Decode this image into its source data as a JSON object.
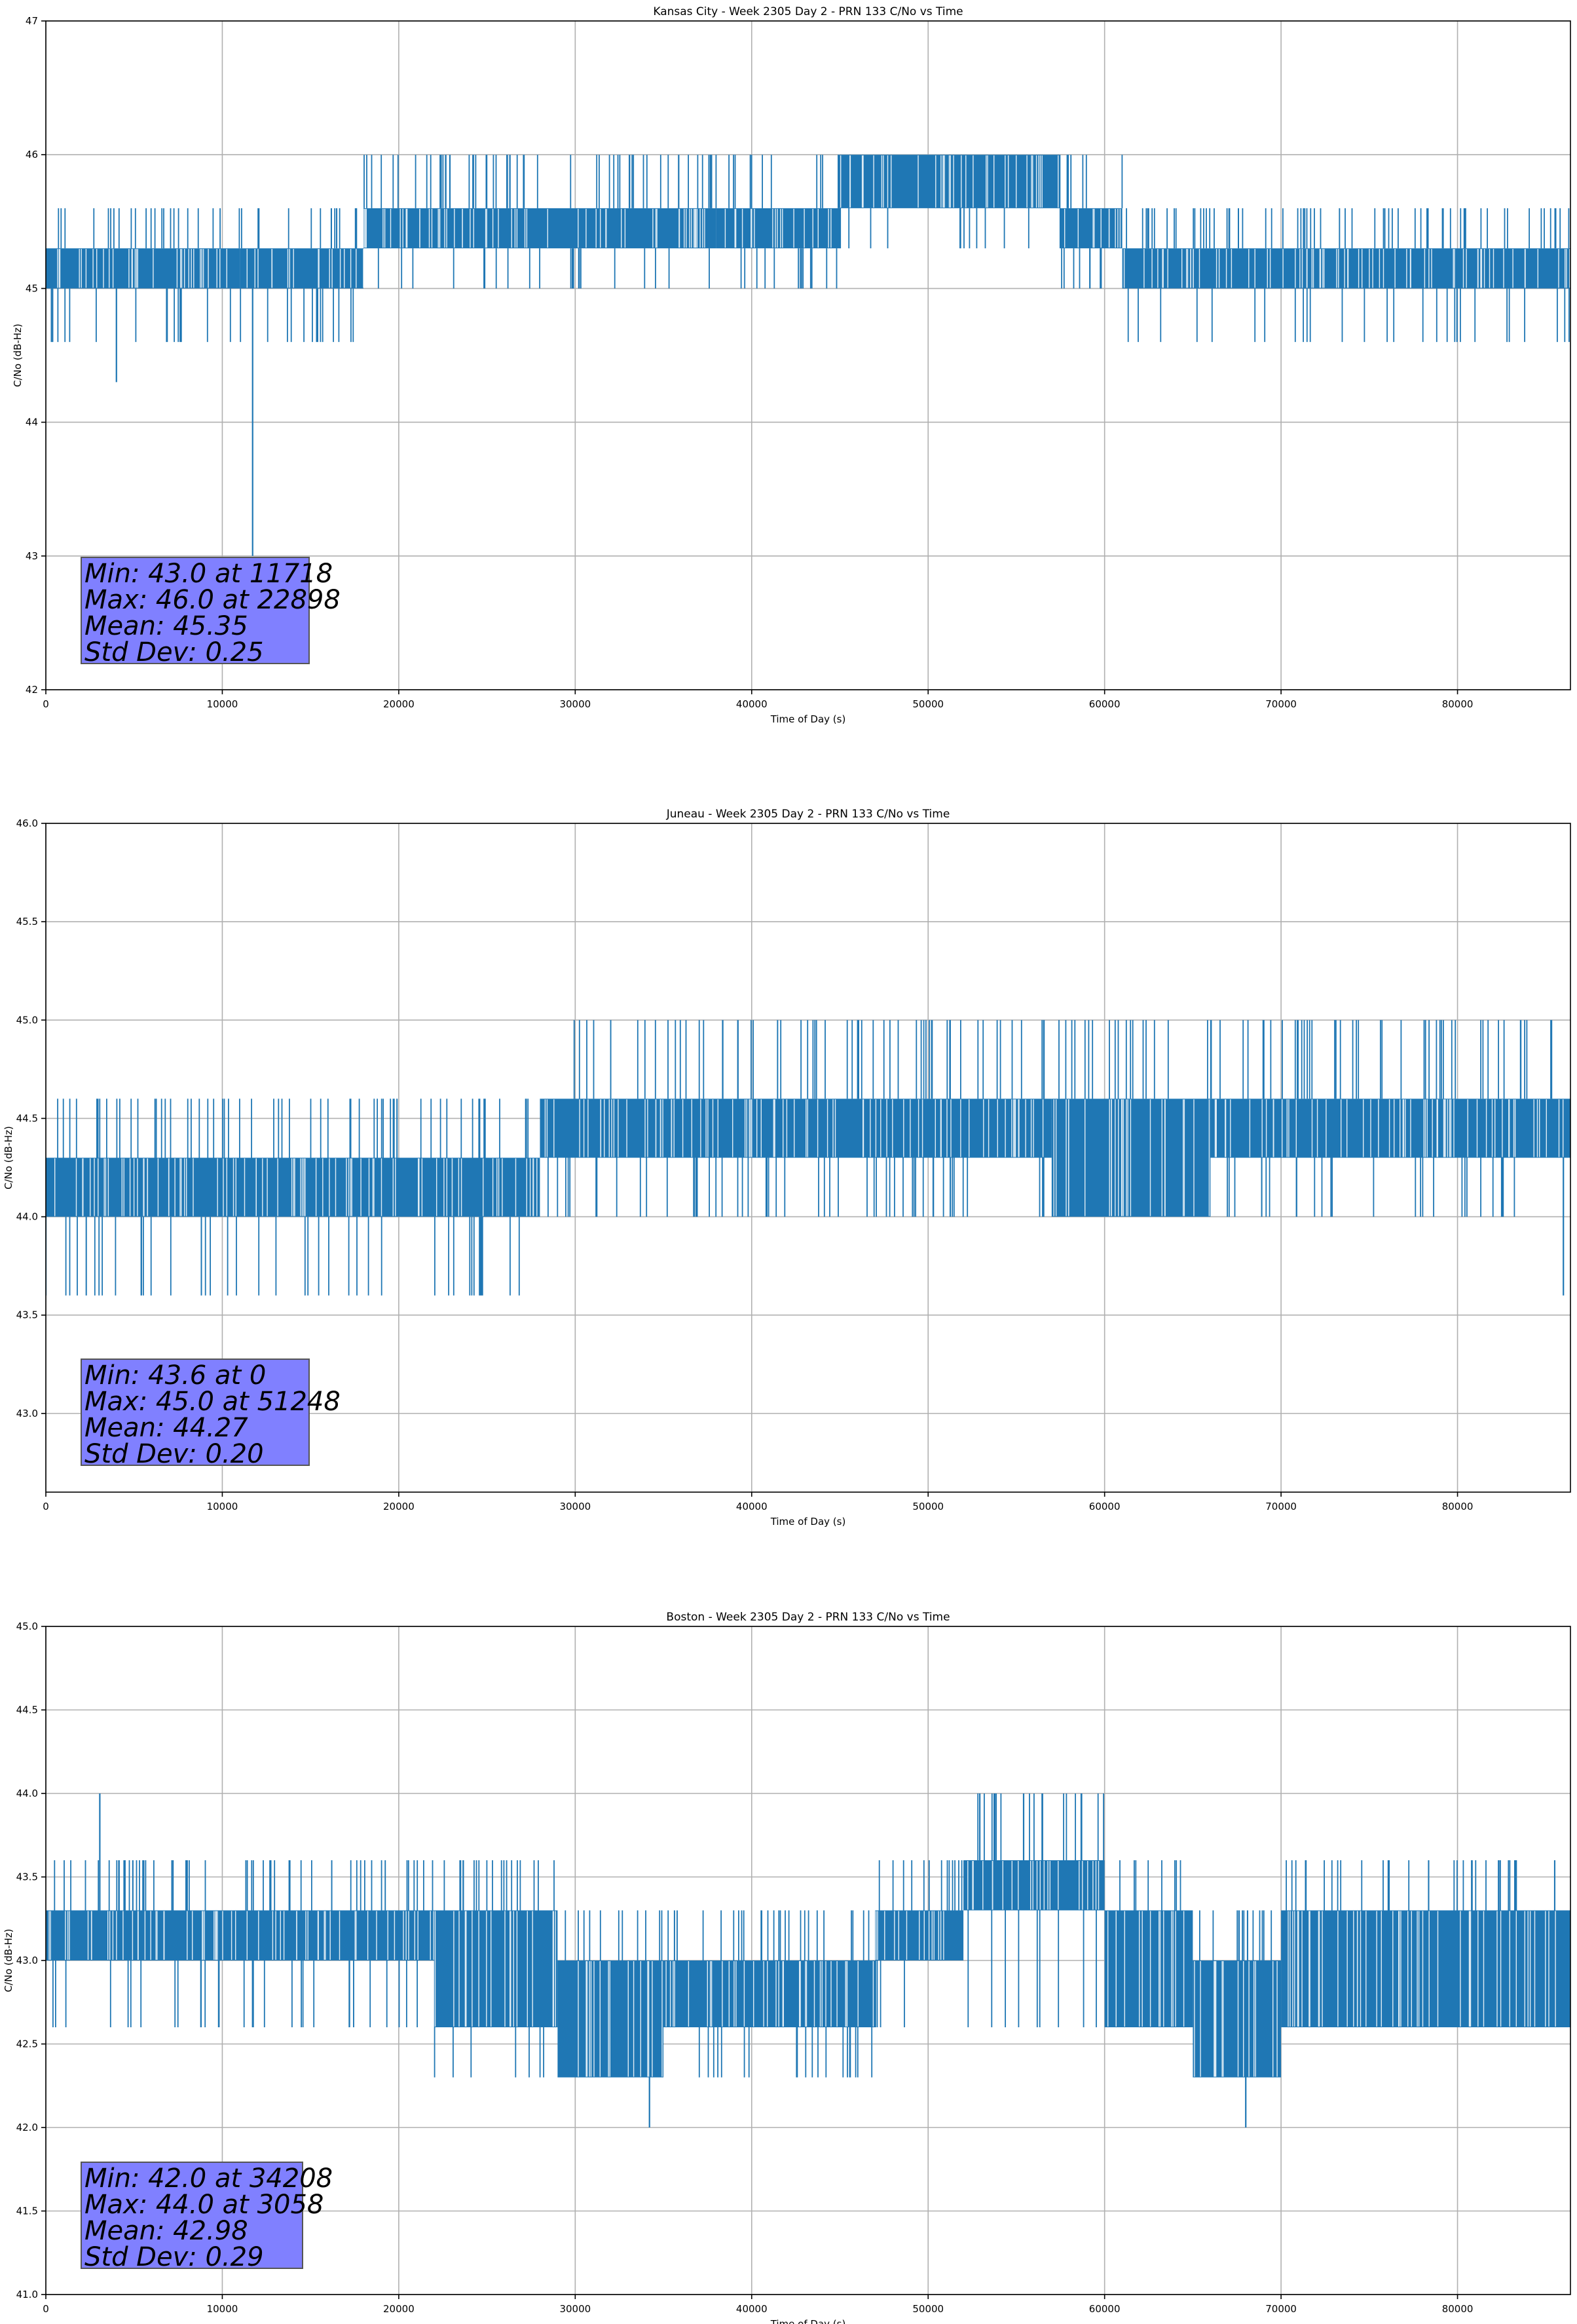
{
  "figure": {
    "background": "#ffffff",
    "series_color": "#1f77b4",
    "grid_color": "#b0b0b0",
    "stats_box_color": "#8080ff"
  },
  "chart_data": [
    {
      "type": "line",
      "title": "Kansas City - Week 2305 Day 2 - PRN 133 C/No vs Time",
      "xlabel": "Time of Day (s)",
      "ylabel": "C/No (dB-Hz)",
      "xlim": [
        0,
        86400
      ],
      "ylim": [
        42,
        47
      ],
      "xticks": [
        0,
        10000,
        20000,
        30000,
        40000,
        50000,
        60000,
        70000,
        80000
      ],
      "xtick_labels": [
        "0",
        "10000",
        "20000",
        "30000",
        "40000",
        "50000",
        "60000",
        "70000",
        "80000"
      ],
      "yticks": [
        42,
        43,
        44,
        45,
        46,
        47
      ],
      "ytick_labels": [
        "42",
        "43",
        "44",
        "45",
        "46",
        "47"
      ],
      "grid": true,
      "levels": [
        44.3,
        44.6,
        45.0,
        45.3,
        45.6,
        46.0
      ],
      "segments": [
        {
          "x": [
            0,
            11000
          ],
          "base": 45.0,
          "top": 45.3,
          "spike_up": 45.6,
          "spike_down": 44.6
        },
        {
          "x": [
            11000,
            18000
          ],
          "base": 45.0,
          "top": 45.3,
          "spike_up": 45.6,
          "spike_down": 44.6
        },
        {
          "x": [
            18000,
            38000
          ],
          "base": 45.3,
          "top": 45.6,
          "spike_up": 46.0,
          "spike_down": 45.0
        },
        {
          "x": [
            38000,
            45000
          ],
          "base": 45.3,
          "top": 45.6,
          "spike_up": 46.0,
          "spike_down": 45.0
        },
        {
          "x": [
            45000,
            57500
          ],
          "base": 45.6,
          "top": 46.0,
          "spike_up": 46.0,
          "spike_down": 45.3
        },
        {
          "x": [
            57500,
            61000
          ],
          "base": 45.3,
          "top": 45.6,
          "spike_up": 46.0,
          "spike_down": 45.0
        },
        {
          "x": [
            61000,
            86400
          ],
          "base": 45.0,
          "top": 45.3,
          "spike_up": 45.6,
          "spike_down": 44.6
        }
      ],
      "notable_points": [
        {
          "x": 11718,
          "y": 43.0
        },
        {
          "x": 4000,
          "y": 44.3
        },
        {
          "x": 22898,
          "y": 46.0
        },
        {
          "x": 26300,
          "y": 46.0
        }
      ],
      "stats": {
        "min": "Min: 43.0 at 11718",
        "max": "Max: 46.0 at 22898",
        "mean": "Mean: 45.35",
        "std": "Std Dev: 0.25"
      }
    },
    {
      "type": "line",
      "title": "Juneau - Week 2305 Day 2 - PRN 133 C/No vs Time",
      "xlabel": "Time of Day (s)",
      "ylabel": "C/No (dB-Hz)",
      "xlim": [
        0,
        86400
      ],
      "ylim": [
        42.6,
        46.0
      ],
      "xticks": [
        0,
        10000,
        20000,
        30000,
        40000,
        50000,
        60000,
        70000,
        80000
      ],
      "xtick_labels": [
        "0",
        "10000",
        "20000",
        "30000",
        "40000",
        "50000",
        "60000",
        "70000",
        "80000"
      ],
      "yticks": [
        43.0,
        43.5,
        44.0,
        44.5,
        45.0,
        45.5,
        46.0
      ],
      "ytick_labels": [
        "43.0",
        "43.5",
        "44.0",
        "44.5",
        "45.0",
        "45.5",
        "46.0"
      ],
      "grid": true,
      "levels": [
        43.6,
        44.0,
        44.3,
        44.6,
        45.0
      ],
      "segments": [
        {
          "x": [
            0,
            17000
          ],
          "base": 44.0,
          "top": 44.3,
          "spike_up": 44.6,
          "spike_down": 43.6
        },
        {
          "x": [
            17000,
            23000
          ],
          "base": 44.0,
          "top": 44.3,
          "spike_up": 44.6,
          "spike_down": 43.6
        },
        {
          "x": [
            23000,
            28000
          ],
          "base": 44.0,
          "top": 44.3,
          "spike_up": 44.6,
          "spike_down": 43.6
        },
        {
          "x": [
            28000,
            57000
          ],
          "base": 44.3,
          "top": 44.6,
          "spike_up": 45.0,
          "spike_down": 44.0
        },
        {
          "x": [
            57000,
            66000
          ],
          "base": 44.0,
          "top": 44.6,
          "spike_up": 45.0,
          "spike_down": 44.0
        },
        {
          "x": [
            66000,
            86400
          ],
          "base": 44.3,
          "top": 44.6,
          "spike_up": 45.0,
          "spike_down": 44.0
        }
      ],
      "notable_points": [
        {
          "x": 0,
          "y": 43.6
        },
        {
          "x": 51248,
          "y": 45.0
        },
        {
          "x": 86000,
          "y": 43.6
        }
      ],
      "stats": {
        "min": "Min: 43.6 at 0",
        "max": "Max: 45.0 at 51248",
        "mean": "Mean: 44.27",
        "std": "Std Dev: 0.20"
      }
    },
    {
      "type": "line",
      "title": "Boston - Week 2305 Day 2 - PRN 133 C/No vs Time",
      "xlabel": "Time of Day (s)",
      "ylabel": "C/No (dB-Hz)",
      "xlim": [
        0,
        86400
      ],
      "ylim": [
        41.0,
        45.0
      ],
      "xticks": [
        0,
        10000,
        20000,
        30000,
        40000,
        50000,
        60000,
        70000,
        80000
      ],
      "xtick_labels": [
        "0",
        "10000",
        "20000",
        "30000",
        "40000",
        "50000",
        "60000",
        "70000",
        "80000"
      ],
      "yticks": [
        41.0,
        41.5,
        42.0,
        42.5,
        43.0,
        43.5,
        44.0,
        44.5,
        45.0
      ],
      "ytick_labels": [
        "41.0",
        "41.5",
        "42.0",
        "42.5",
        "43.0",
        "43.5",
        "44.0",
        "44.5",
        "45.0"
      ],
      "grid": true,
      "levels": [
        42.0,
        42.3,
        42.6,
        43.0,
        43.3,
        43.6,
        44.0
      ],
      "segments": [
        {
          "x": [
            0,
            22000
          ],
          "base": 43.0,
          "top": 43.3,
          "spike_up": 43.6,
          "spike_down": 42.6
        },
        {
          "x": [
            22000,
            29000
          ],
          "base": 42.6,
          "top": 43.3,
          "spike_up": 43.6,
          "spike_down": 42.3
        },
        {
          "x": [
            29000,
            35000
          ],
          "base": 42.3,
          "top": 43.0,
          "spike_up": 43.3,
          "spike_down": 42.3
        },
        {
          "x": [
            35000,
            47000
          ],
          "base": 42.6,
          "top": 43.0,
          "spike_up": 43.3,
          "spike_down": 42.3
        },
        {
          "x": [
            47000,
            52000
          ],
          "base": 43.0,
          "top": 43.3,
          "spike_up": 43.6,
          "spike_down": 42.6
        },
        {
          "x": [
            52000,
            60000
          ],
          "base": 43.3,
          "top": 43.6,
          "spike_up": 44.0,
          "spike_down": 42.6
        },
        {
          "x": [
            60000,
            65000
          ],
          "base": 42.6,
          "top": 43.3,
          "spike_up": 43.6,
          "spike_down": 42.6
        },
        {
          "x": [
            65000,
            70000
          ],
          "base": 42.3,
          "top": 43.0,
          "spike_up": 43.3,
          "spike_down": 42.3
        },
        {
          "x": [
            70000,
            86400
          ],
          "base": 42.6,
          "top": 43.3,
          "spike_up": 43.6,
          "spike_down": 42.6
        }
      ],
      "notable_points": [
        {
          "x": 3058,
          "y": 44.0
        },
        {
          "x": 34208,
          "y": 42.0
        },
        {
          "x": 68000,
          "y": 42.0
        }
      ],
      "stats": {
        "min": "Min: 42.0 at 34208",
        "max": "Max: 44.0 at 3058",
        "mean": "Mean: 42.98",
        "std": "Std Dev: 0.29"
      }
    }
  ]
}
